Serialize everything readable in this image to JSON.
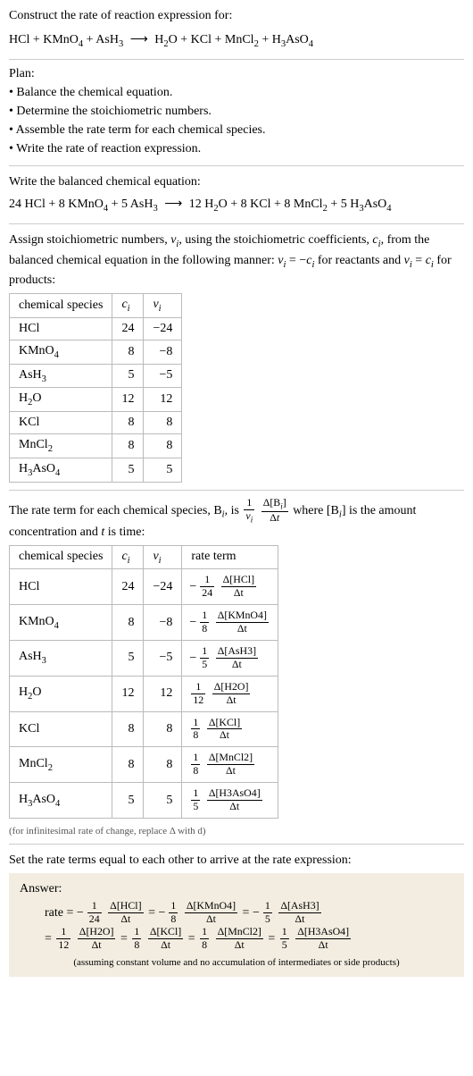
{
  "intro": "Construct the rate of reaction expression for:",
  "eq_unbalanced_lhs": "HCl + KMnO",
  "eq_unbalanced": {
    "p1": "HCl + KMnO",
    "s1": "4",
    "p2": " + AsH",
    "s2": "3",
    "arrow": "⟶",
    "p3": "H",
    "s3": "2",
    "p4": "O + KCl + MnCl",
    "s4": "2",
    "p5": " + H",
    "s5": "3",
    "p6": "AsO",
    "s6": "4"
  },
  "plan_label": "Plan:",
  "plan1": "• Balance the chemical equation.",
  "plan2": "• Determine the stoichiometric numbers.",
  "plan3": "• Assemble the rate term for each chemical species.",
  "plan4": "• Write the rate of reaction expression.",
  "bal_label": "Write the balanced chemical equation:",
  "bal": {
    "c1": "24 HCl + 8 KMnO",
    "s1": "4",
    "c2": " + 5 AsH",
    "s2": "3",
    "arrow": "⟶",
    "c3": "12 H",
    "s3": "2",
    "c4": "O + 8 KCl + 8 MnCl",
    "s4": "2",
    "c5": " + 5 H",
    "s5": "3",
    "c6": "AsO",
    "s6": "4"
  },
  "assign_text1": "Assign stoichiometric numbers, ",
  "assign_nu": "ν",
  "assign_i": "i",
  "assign_text2": ", using the stoichiometric coefficients, ",
  "assign_c": "c",
  "assign_text3": ", from the balanced chemical equation in the following manner: ",
  "assign_rel1a": "ν",
  "assign_rel1b": " = −",
  "assign_rel1c": "c",
  "assign_text4": " for reactants and ",
  "assign_rel2a": "ν",
  "assign_rel2b": " = ",
  "assign_rel2c": "c",
  "assign_text5": " for products:",
  "tbl_hdr_species": "chemical species",
  "tbl_hdr_c": "c",
  "tbl_hdr_c_sub": "i",
  "tbl_hdr_nu": "ν",
  "tbl_hdr_nu_sub": "i",
  "tbl_hdr_rate": "rate term",
  "species": [
    {
      "name": "HCl",
      "sub": "",
      "c": "24",
      "nu": "−24",
      "rn": "1",
      "rd": "24",
      "dnum": "Δ[HCl]",
      "neg": true
    },
    {
      "name": "KMnO",
      "sub": "4",
      "c": "8",
      "nu": "−8",
      "rn": "1",
      "rd": "8",
      "dnum": "Δ[KMnO4]",
      "neg": true
    },
    {
      "name": "AsH",
      "sub": "3",
      "c": "5",
      "nu": "−5",
      "rn": "1",
      "rd": "5",
      "dnum": "Δ[AsH3]",
      "neg": true
    },
    {
      "name": "H",
      "sub": "2",
      "tail": "O",
      "c": "12",
      "nu": "12",
      "rn": "1",
      "rd": "12",
      "dnum": "Δ[H2O]",
      "neg": false
    },
    {
      "name": "KCl",
      "sub": "",
      "c": "8",
      "nu": "8",
      "rn": "1",
      "rd": "8",
      "dnum": "Δ[KCl]",
      "neg": false
    },
    {
      "name": "MnCl",
      "sub": "2",
      "c": "8",
      "nu": "8",
      "rn": "1",
      "rd": "8",
      "dnum": "Δ[MnCl2]",
      "neg": false
    },
    {
      "name": "H",
      "sub": "3",
      "tail": "AsO",
      "tail_sub": "4",
      "c": "5",
      "nu": "5",
      "rn": "1",
      "rd": "5",
      "dnum": "Δ[H3AsO4]",
      "neg": false
    }
  ],
  "rateterm_text1": "The rate term for each chemical species, B",
  "rateterm_text2": ", is ",
  "rt_f1n": "1",
  "rt_f1d_a": "ν",
  "rt_f1d_b": "i",
  "rt_f2n_a": "Δ[B",
  "rt_f2n_b": "i",
  "rt_f2n_c": "]",
  "rt_f2d": "Δt",
  "rateterm_text3": " where [B",
  "rateterm_text4": "] is the amount concentration and ",
  "rateterm_t": "t",
  "rateterm_text5": " is time:",
  "note1": "(for infinitesimal rate of change, replace Δ with d)",
  "set_text": "Set the rate terms equal to each other to arrive at the rate expression:",
  "answer_label": "Answer:",
  "rate_eq_label": "rate = ",
  "dt": "Δt",
  "eq_sign": " = ",
  "answer_note": "(assuming constant volume and no accumulation of intermediates or side products)",
  "colors": {
    "bg": "#ffffff",
    "border": "#bbbbbb",
    "sep": "#cccccc",
    "answer_bg": "#f3ede1"
  }
}
